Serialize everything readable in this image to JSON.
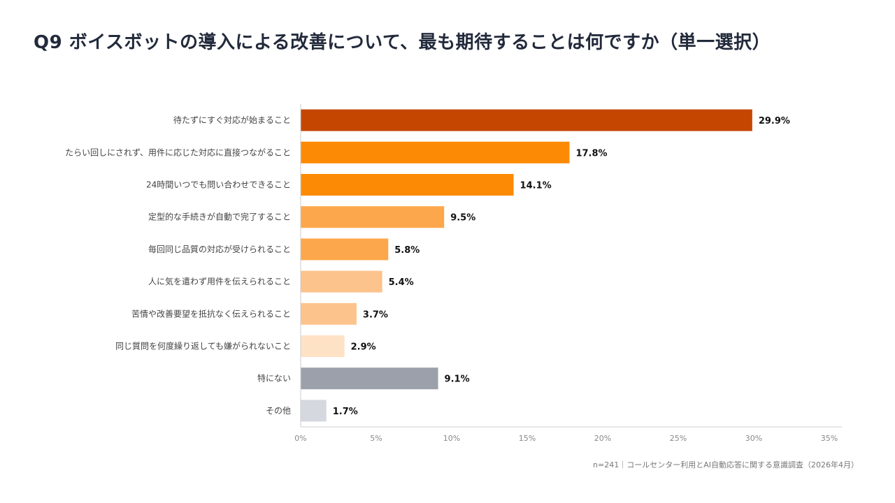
{
  "title": "Q9 ボイスボットの導入による改善について、最も期待することは何ですか（単一選択）",
  "note": "n=241｜コールセンター利用とAI自動応答に関する意識調査（2026年4月）",
  "chart_data": {
    "type": "bar",
    "orientation": "horizontal",
    "categories": [
      "待たずにすぐ対応が始まること",
      "たらい回しにされず、用件に応じた対応に直接つながること",
      "24時間いつでも問い合わせできること",
      "定型的な手続きが自動で完了すること",
      "毎回同じ品質の対応が受けられること",
      "人に気を遣わず用件を伝えられること",
      "苦情や改善要望を抵抗なく伝えられること",
      "同じ質問を何度繰り返しても嫌がられないこと",
      "特にない",
      "その他"
    ],
    "values": [
      29.9,
      17.8,
      14.1,
      9.5,
      5.8,
      5.4,
      3.7,
      2.9,
      9.1,
      1.7
    ],
    "value_labels": [
      "29.9%",
      "17.8%",
      "14.1%",
      "9.5%",
      "5.8%",
      "5.4%",
      "3.7%",
      "2.9%",
      "9.1%",
      "1.7%"
    ],
    "colors": [
      "#c44601",
      "#fd8a04",
      "#fd8a04",
      "#fda74c",
      "#fda74c",
      "#fdc38c",
      "#fdc38c",
      "#fee2c6",
      "#9ca0aa",
      "#d5d8df"
    ],
    "xlim": [
      0,
      35
    ],
    "xticks": [
      0,
      5,
      10,
      15,
      20,
      25,
      30,
      35
    ],
    "xtick_labels": [
      "0%",
      "5%",
      "10%",
      "15%",
      "20%",
      "25%",
      "30%",
      "35%"
    ],
    "grid": false,
    "legend": "none"
  }
}
